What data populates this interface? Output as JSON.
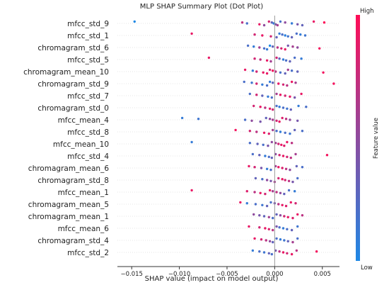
{
  "chart_data": {
    "type": "scatter",
    "title": "MLP SHAP Summary Plot (Dot Plot)",
    "xlabel": "SHAP value (impact on model output)",
    "xlim": [
      -0.0165,
      0.0068
    ],
    "x_ticks": [
      -0.015,
      -0.01,
      -0.005,
      0.0,
      0.005
    ],
    "x_tick_labels": [
      "−0.015",
      "−0.010",
      "−0.005",
      "0.000",
      "0.005"
    ],
    "grid": false,
    "colorbar": {
      "label": "Feature value",
      "high_label": "High",
      "low_label": "Low",
      "low_color": "#1e88e5",
      "high_color": "#ff0d57"
    },
    "features": [
      {
        "name": "mfcc_std_9",
        "points": [
          [
            -0.0147,
            0.0
          ],
          [
            -0.0034,
            0.7
          ],
          [
            -0.0029,
            0.2
          ],
          [
            -0.0016,
            0.9
          ],
          [
            -0.0011,
            0.5
          ],
          [
            -0.0006,
            0.8
          ],
          [
            -0.0003,
            0.3
          ],
          [
            -0.0001,
            0.1
          ],
          [
            0.0001,
            0.4
          ],
          [
            0.0003,
            0.6
          ],
          [
            0.0006,
            0.2
          ],
          [
            0.0011,
            0.5
          ],
          [
            0.0018,
            0.1
          ],
          [
            0.0024,
            0.4
          ],
          [
            0.0029,
            0.3
          ],
          [
            0.0041,
            0.9
          ],
          [
            0.0052,
            1.0
          ]
        ]
      },
      {
        "name": "mfcc_std_1",
        "points": [
          [
            -0.0087,
            0.9
          ],
          [
            -0.0021,
            0.8
          ],
          [
            -0.0013,
            0.9
          ],
          [
            -0.0004,
            0.8
          ],
          [
            0.0002,
            0.3
          ],
          [
            0.0005,
            0.1
          ],
          [
            0.0008,
            0.2
          ],
          [
            0.0011,
            0.05
          ],
          [
            0.0014,
            0.15
          ],
          [
            0.0018,
            0.3
          ],
          [
            0.0023,
            0.2
          ],
          [
            0.0027,
            0.1
          ],
          [
            0.0032,
            0.15
          ]
        ]
      },
      {
        "name": "chromagram_std_6",
        "points": [
          [
            -0.0028,
            0.2
          ],
          [
            -0.0022,
            0.1
          ],
          [
            -0.0016,
            0.6
          ],
          [
            -0.0011,
            0.2
          ],
          [
            -0.0008,
            0.1
          ],
          [
            -0.0005,
            0.0
          ],
          [
            -0.0002,
            0.3
          ],
          [
            0.0003,
            0.7
          ],
          [
            0.0007,
            0.8
          ],
          [
            0.0011,
            0.9
          ],
          [
            0.0014,
            0.4
          ],
          [
            0.0019,
            0.6
          ],
          [
            0.0024,
            0.5
          ],
          [
            0.0047,
            0.95
          ]
        ]
      },
      {
        "name": "mfcc_std_5",
        "points": [
          [
            -0.0069,
            0.9
          ],
          [
            -0.0021,
            0.8
          ],
          [
            -0.0015,
            0.7
          ],
          [
            -0.0008,
            0.9
          ],
          [
            -0.0004,
            0.6
          ],
          [
            0.0002,
            0.8
          ],
          [
            0.0005,
            0.3
          ],
          [
            0.0009,
            0.1
          ],
          [
            0.0012,
            0.2
          ],
          [
            0.0016,
            0.3
          ],
          [
            0.0021,
            0.2
          ],
          [
            0.0028,
            0.1
          ]
        ]
      },
      {
        "name": "chromagram_mean_10",
        "points": [
          [
            -0.0031,
            0.9
          ],
          [
            -0.0023,
            0.1
          ],
          [
            -0.0019,
            0.8
          ],
          [
            -0.0012,
            0.9
          ],
          [
            -0.0008,
            0.9
          ],
          [
            -0.0005,
            0.8
          ],
          [
            -0.0002,
            0.95
          ],
          [
            0.0001,
            0.7
          ],
          [
            0.0006,
            0.2
          ],
          [
            0.0011,
            0.3
          ],
          [
            0.0014,
            0.6
          ],
          [
            0.0018,
            0.2
          ],
          [
            0.0024,
            0.3
          ],
          [
            0.0051,
            0.95
          ]
        ]
      },
      {
        "name": "chromagram_std_9",
        "points": [
          [
            -0.0032,
            0.2
          ],
          [
            -0.0024,
            0.15
          ],
          [
            -0.0019,
            0.8
          ],
          [
            -0.0013,
            0.1
          ],
          [
            -0.0008,
            0.2
          ],
          [
            -0.0005,
            0.1
          ],
          [
            -0.0002,
            0.3
          ],
          [
            0.0004,
            0.9
          ],
          [
            0.0009,
            0.8
          ],
          [
            0.0013,
            0.7
          ],
          [
            0.0018,
            0.9
          ],
          [
            0.0022,
            0.6
          ],
          [
            0.0062,
            0.95
          ]
        ]
      },
      {
        "name": "mfcc_std_7",
        "points": [
          [
            -0.0026,
            0.2
          ],
          [
            -0.0019,
            0.8
          ],
          [
            -0.0013,
            0.3
          ],
          [
            -0.0007,
            0.1
          ],
          [
            -0.0003,
            0.2
          ],
          [
            0.0002,
            0.6
          ],
          [
            0.0006,
            0.9
          ],
          [
            0.0011,
            0.8
          ],
          [
            0.0016,
            0.9
          ],
          [
            0.0021,
            0.4
          ],
          [
            0.0028,
            0.9
          ]
        ]
      },
      {
        "name": "chromagram_std_0",
        "points": [
          [
            -0.0022,
            0.8
          ],
          [
            -0.0015,
            0.9
          ],
          [
            -0.001,
            0.7
          ],
          [
            -0.0005,
            0.9
          ],
          [
            -0.0002,
            0.8
          ],
          [
            0.0002,
            0.2
          ],
          [
            0.0005,
            0.1
          ],
          [
            0.0009,
            0.2
          ],
          [
            0.0013,
            0.15
          ],
          [
            0.0017,
            0.3
          ],
          [
            0.0025,
            0.1
          ],
          [
            0.0033,
            0.2
          ]
        ]
      },
      {
        "name": "mfcc_mean_4",
        "points": [
          [
            -0.0097,
            0.1
          ],
          [
            -0.008,
            0.15
          ],
          [
            -0.0031,
            0.2
          ],
          [
            -0.0024,
            0.5
          ],
          [
            -0.0015,
            0.4
          ],
          [
            -0.0009,
            0.3
          ],
          [
            -0.0005,
            0.5
          ],
          [
            -0.0002,
            0.6
          ],
          [
            0.0002,
            0.8
          ],
          [
            0.0005,
            0.9
          ],
          [
            0.0008,
            0.85
          ],
          [
            0.0012,
            0.7
          ],
          [
            0.0016,
            0.5
          ],
          [
            0.0024,
            0.4
          ]
        ]
      },
      {
        "name": "mfcc_std_8",
        "points": [
          [
            -0.0041,
            0.95
          ],
          [
            -0.0026,
            0.8
          ],
          [
            -0.0019,
            0.7
          ],
          [
            -0.0011,
            0.9
          ],
          [
            -0.0006,
            0.85
          ],
          [
            -0.0002,
            0.6
          ],
          [
            0.0002,
            0.2
          ],
          [
            0.0006,
            0.1
          ],
          [
            0.0011,
            0.2
          ],
          [
            0.0016,
            0.15
          ],
          [
            0.0021,
            0.3
          ],
          [
            0.0029,
            0.2
          ]
        ]
      },
      {
        "name": "mfcc_mean_10",
        "points": [
          [
            -0.0087,
            0.1
          ],
          [
            -0.0026,
            0.2
          ],
          [
            -0.0018,
            0.3
          ],
          [
            -0.0012,
            0.2
          ],
          [
            -0.0007,
            0.4
          ],
          [
            -0.0003,
            0.5
          ],
          [
            0.0001,
            0.6
          ],
          [
            0.0004,
            0.8
          ],
          [
            0.0007,
            0.9
          ],
          [
            0.001,
            0.85
          ],
          [
            0.0013,
            0.9
          ],
          [
            0.0018,
            0.7
          ]
        ]
      },
      {
        "name": "mfcc_std_4",
        "points": [
          [
            -0.0023,
            0.2
          ],
          [
            -0.0016,
            0.3
          ],
          [
            -0.001,
            0.1
          ],
          [
            -0.0006,
            0.2
          ],
          [
            -0.0003,
            0.3
          ],
          [
            0.0001,
            0.5
          ],
          [
            0.0005,
            0.8
          ],
          [
            0.0009,
            0.9
          ],
          [
            0.0013,
            0.8
          ],
          [
            0.0017,
            0.7
          ],
          [
            0.0022,
            0.6
          ],
          [
            0.0055,
            0.95
          ]
        ]
      },
      {
        "name": "chromagram_mean_6",
        "points": [
          [
            -0.0027,
            0.9
          ],
          [
            -0.0021,
            0.8
          ],
          [
            -0.0014,
            0.4
          ],
          [
            -0.0008,
            0.1
          ],
          [
            -0.0004,
            0.2
          ],
          [
            0.0001,
            0.6
          ],
          [
            0.0004,
            0.9
          ],
          [
            0.0008,
            0.85
          ],
          [
            0.0012,
            0.7
          ],
          [
            0.0016,
            0.5
          ],
          [
            0.0023,
            0.3
          ],
          [
            0.0029,
            0.2
          ]
        ]
      },
      {
        "name": "chromagram_std_8",
        "points": [
          [
            -0.002,
            0.3
          ],
          [
            -0.0013,
            0.2
          ],
          [
            -0.0008,
            0.5
          ],
          [
            -0.0004,
            0.4
          ],
          [
            0.0,
            0.6
          ],
          [
            0.0004,
            0.8
          ],
          [
            0.0008,
            0.9
          ],
          [
            0.0011,
            0.8
          ],
          [
            0.0015,
            0.7
          ],
          [
            0.0019,
            0.4
          ],
          [
            0.0024,
            0.2
          ]
        ]
      },
      {
        "name": "mfcc_mean_1",
        "points": [
          [
            -0.0087,
            0.9
          ],
          [
            -0.0029,
            0.85
          ],
          [
            -0.0021,
            0.7
          ],
          [
            -0.0015,
            0.9
          ],
          [
            -0.001,
            0.8
          ],
          [
            -0.0005,
            0.9
          ],
          [
            -0.0002,
            0.6
          ],
          [
            0.0002,
            0.7
          ],
          [
            0.0006,
            0.5
          ],
          [
            0.001,
            0.3
          ],
          [
            0.0015,
            0.2
          ],
          [
            0.0021,
            0.1
          ]
        ]
      },
      {
        "name": "chromagram_mean_5",
        "points": [
          [
            -0.0036,
            0.9
          ],
          [
            -0.0029,
            0.1
          ],
          [
            -0.002,
            0.2
          ],
          [
            -0.0013,
            0.15
          ],
          [
            -0.0008,
            0.3
          ],
          [
            -0.0004,
            0.2
          ],
          [
            0.0,
            0.4
          ],
          [
            0.0004,
            0.7
          ],
          [
            0.0008,
            0.9
          ],
          [
            0.0012,
            0.85
          ],
          [
            0.0017,
            0.9
          ],
          [
            0.0022,
            0.8
          ]
        ]
      },
      {
        "name": "chromagram_mean_1",
        "points": [
          [
            -0.0022,
            0.5
          ],
          [
            -0.0016,
            0.4
          ],
          [
            -0.0011,
            0.3
          ],
          [
            -0.0006,
            0.6
          ],
          [
            -0.0002,
            0.2
          ],
          [
            0.0002,
            0.3
          ],
          [
            0.0006,
            0.5
          ],
          [
            0.001,
            0.8
          ],
          [
            0.0014,
            0.9
          ],
          [
            0.0019,
            0.85
          ],
          [
            0.0024,
            0.9
          ],
          [
            0.0029,
            0.7
          ]
        ]
      },
      {
        "name": "mfcc_mean_6",
        "points": [
          [
            -0.0027,
            0.9
          ],
          [
            -0.0016,
            0.8
          ],
          [
            -0.001,
            0.9
          ],
          [
            -0.0006,
            0.85
          ],
          [
            -0.0002,
            0.7
          ],
          [
            0.0002,
            0.4
          ],
          [
            0.0005,
            0.2
          ],
          [
            0.0009,
            0.1
          ],
          [
            0.0013,
            0.2
          ],
          [
            0.0018,
            0.3
          ],
          [
            0.0024,
            0.15
          ]
        ]
      },
      {
        "name": "chromagram_std_4",
        "points": [
          [
            -0.0021,
            0.9
          ],
          [
            -0.0014,
            0.8
          ],
          [
            -0.0009,
            0.7
          ],
          [
            -0.0005,
            0.5
          ],
          [
            -0.0002,
            0.3
          ],
          [
            0.0002,
            0.2
          ],
          [
            0.0006,
            0.1
          ],
          [
            0.001,
            0.15
          ],
          [
            0.0014,
            0.3
          ],
          [
            0.0019,
            0.6
          ],
          [
            0.0024,
            0.2
          ]
        ]
      },
      {
        "name": "mfcc_std_2",
        "points": [
          [
            -0.0023,
            0.1
          ],
          [
            -0.0016,
            0.2
          ],
          [
            -0.0011,
            0.15
          ],
          [
            -0.0006,
            0.3
          ],
          [
            -0.0003,
            0.2
          ],
          [
            0.0001,
            0.4
          ],
          [
            0.0005,
            0.7
          ],
          [
            0.0009,
            0.9
          ],
          [
            0.0013,
            0.8
          ],
          [
            0.0018,
            0.9
          ],
          [
            0.0023,
            0.7
          ],
          [
            0.0044,
            0.95
          ]
        ]
      }
    ]
  }
}
